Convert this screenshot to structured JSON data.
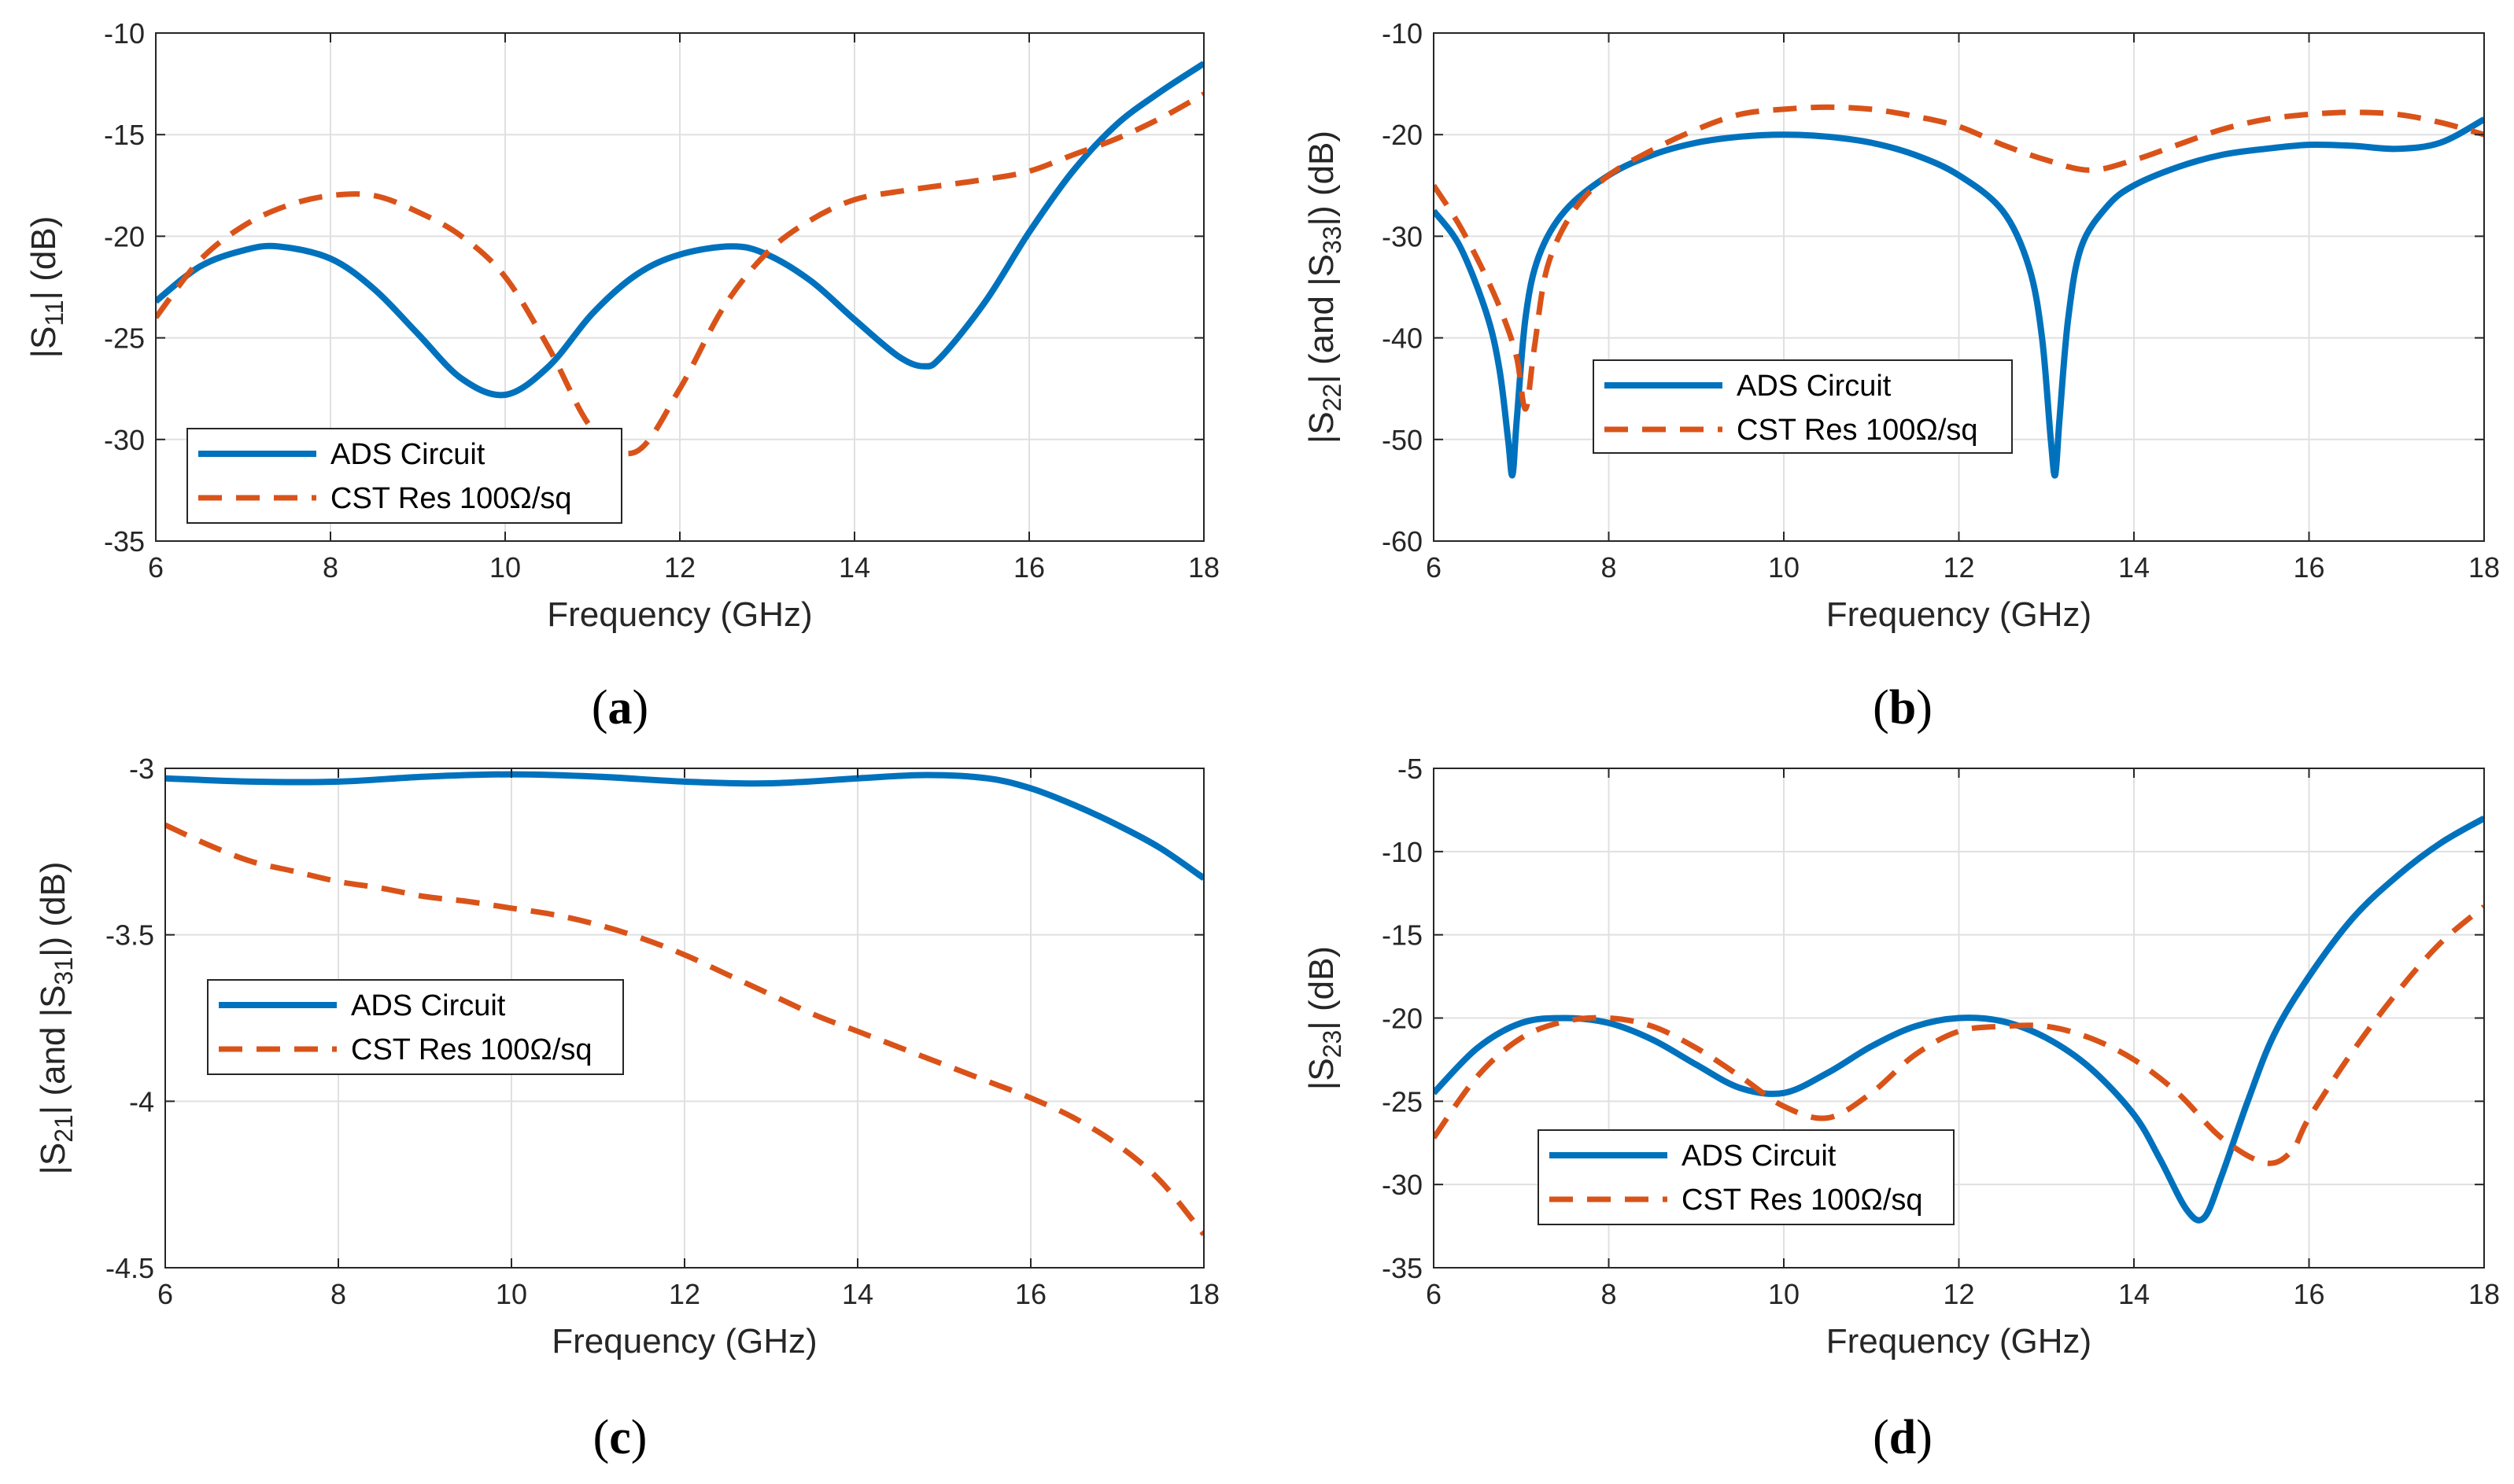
{
  "figure": {
    "colors": {
      "ads": "#0072BD",
      "cst": "#D95319",
      "axis": "#262626",
      "grid": "#E0E0E0"
    }
  },
  "chart_data": [
    {
      "id": "a",
      "type": "line",
      "panel_label": "a",
      "xlabel": "Frequency (GHz)",
      "ylabel_parts": [
        [
          "|S",
          ""
        ],
        [
          "11",
          "sub"
        ],
        [
          "| (dB)",
          ""
        ]
      ],
      "xlim": [
        6,
        18
      ],
      "ylim": [
        -35,
        -10
      ],
      "xticks": [
        6,
        8,
        10,
        12,
        14,
        16,
        18
      ],
      "yticks": [
        -35,
        -30,
        -25,
        -20,
        -15,
        -10
      ],
      "grid": true,
      "legend_position": "bottom-left",
      "series": [
        {
          "name": "ADS Circuit",
          "style": "solid",
          "x": [
            6,
            6.5,
            7,
            7.4,
            8,
            8.5,
            9,
            9.5,
            10,
            10.5,
            11,
            11.5,
            12,
            12.6,
            13,
            13.5,
            14,
            14.5,
            14.8,
            15,
            15.5,
            16,
            16.5,
            17,
            17.5,
            18
          ],
          "y": [
            -23.2,
            -21.5,
            -20.7,
            -20.5,
            -21.1,
            -22.6,
            -24.8,
            -27,
            -27.8,
            -26.4,
            -23.8,
            -21.9,
            -20.9,
            -20.5,
            -20.9,
            -22.2,
            -24.1,
            -25.9,
            -26.4,
            -25.9,
            -23.2,
            -19.8,
            -16.8,
            -14.5,
            -12.9,
            -11.5
          ]
        },
        {
          "name": "CST Res 100Ω/sq",
          "style": "dashed",
          "x": [
            6,
            6.5,
            7,
            7.5,
            8,
            8.5,
            9,
            9.5,
            10,
            10.5,
            11,
            11.5,
            12,
            12.5,
            13,
            13.5,
            14,
            14.5,
            15,
            15.5,
            16,
            16.5,
            17,
            17.5,
            18
          ],
          "y": [
            -24,
            -21.2,
            -19.5,
            -18.5,
            -18,
            -18,
            -18.8,
            -20,
            -22,
            -25.5,
            -29.5,
            -30.6,
            -27.5,
            -23.5,
            -20.8,
            -19.2,
            -18.2,
            -17.8,
            -17.5,
            -17.2,
            -16.8,
            -16,
            -15.2,
            -14.2,
            -13
          ]
        }
      ]
    },
    {
      "id": "b",
      "type": "line",
      "panel_label": "b",
      "xlabel": "Frequency (GHz)",
      "ylabel_parts": [
        [
          "|S",
          ""
        ],
        [
          "22",
          "sub"
        ],
        [
          "| (and |S",
          ""
        ],
        [
          "33",
          "sub"
        ],
        [
          "|) (dB)",
          ""
        ]
      ],
      "xlim": [
        6,
        18
      ],
      "ylim": [
        -60,
        -10
      ],
      "xticks": [
        6,
        8,
        10,
        12,
        14,
        16,
        18
      ],
      "yticks": [
        -60,
        -50,
        -40,
        -30,
        -20,
        -10
      ],
      "grid": true,
      "legend_position": "center-left",
      "series": [
        {
          "name": "ADS Circuit",
          "style": "solid",
          "x": [
            6,
            6.3,
            6.6,
            6.75,
            6.85,
            6.9,
            6.95,
            7.05,
            7.2,
            7.5,
            8,
            8.5,
            9,
            9.5,
            10,
            10.5,
            11,
            11.5,
            12,
            12.5,
            12.8,
            12.95,
            13.05,
            13.1,
            13.15,
            13.25,
            13.4,
            13.7,
            14,
            14.5,
            15,
            15.5,
            16,
            16.5,
            17,
            17.5,
            18
          ],
          "y": [
            -27.5,
            -31,
            -37.5,
            -43,
            -50,
            -53.5,
            -48,
            -38,
            -32,
            -27.5,
            -24,
            -22,
            -20.8,
            -20.2,
            -20,
            -20.2,
            -20.8,
            -22,
            -24,
            -27.5,
            -33,
            -40,
            -50,
            -53.5,
            -48,
            -38,
            -31,
            -27,
            -25,
            -23.2,
            -22,
            -21.4,
            -21,
            -21.1,
            -21.4,
            -20.8,
            -18.5
          ]
        },
        {
          "name": "CST Res 100Ω/sq",
          "style": "dashed",
          "x": [
            6,
            6.3,
            6.6,
            6.8,
            6.95,
            7.05,
            7.15,
            7.3,
            7.6,
            8,
            8.5,
            9,
            9.5,
            10,
            10.5,
            11,
            11.5,
            12,
            12.5,
            13,
            13.5,
            14,
            14.5,
            15,
            15.5,
            16,
            16.5,
            17,
            17.5,
            18
          ],
          "y": [
            -25,
            -29,
            -34,
            -38,
            -42,
            -47,
            -41,
            -33,
            -27.5,
            -24,
            -21.5,
            -19.5,
            -18,
            -17.5,
            -17.3,
            -17.5,
            -18.2,
            -19.2,
            -21,
            -22.5,
            -23.5,
            -22.5,
            -21,
            -19.5,
            -18.5,
            -18,
            -17.8,
            -18,
            -18.8,
            -20
          ]
        }
      ]
    },
    {
      "id": "c",
      "type": "line",
      "panel_label": "c",
      "xlabel": "Frequency (GHz)",
      "ylabel_parts": [
        [
          "|S",
          ""
        ],
        [
          "21",
          "sub"
        ],
        [
          "| (and |S",
          ""
        ],
        [
          "31",
          "sub"
        ],
        [
          "|) (dB)",
          ""
        ]
      ],
      "xlim": [
        6,
        18
      ],
      "ylim": [
        -4.5,
        -3
      ],
      "xticks": [
        6,
        8,
        10,
        12,
        14,
        16,
        18
      ],
      "yticks": [
        -4.5,
        -4,
        -3.5,
        -3
      ],
      "grid": true,
      "legend_position": "center-left",
      "series": [
        {
          "name": "ADS Circuit",
          "style": "solid",
          "x": [
            6,
            7,
            8,
            9,
            10,
            11,
            12,
            13,
            14,
            14.8,
            15.5,
            16,
            16.5,
            17,
            17.5,
            18
          ],
          "y": [
            -3.03,
            -3.04,
            -3.04,
            -3.025,
            -3.018,
            -3.025,
            -3.04,
            -3.045,
            -3.03,
            -3.02,
            -3.03,
            -3.06,
            -3.11,
            -3.17,
            -3.24,
            -3.33
          ]
        },
        {
          "name": "CST Res 100Ω/sq",
          "style": "dashed",
          "x": [
            6,
            6.5,
            7,
            7.5,
            8,
            8.5,
            9,
            9.5,
            10,
            10.5,
            11,
            11.5,
            12,
            12.5,
            13,
            13.5,
            14,
            14.5,
            15,
            15.5,
            16,
            16.5,
            17,
            17.5,
            18
          ],
          "y": [
            -3.17,
            -3.23,
            -3.28,
            -3.31,
            -3.34,
            -3.36,
            -3.385,
            -3.4,
            -3.42,
            -3.44,
            -3.47,
            -3.51,
            -3.56,
            -3.62,
            -3.68,
            -3.74,
            -3.79,
            -3.84,
            -3.89,
            -3.94,
            -3.99,
            -4.05,
            -4.13,
            -4.24,
            -4.4
          ]
        }
      ]
    },
    {
      "id": "d",
      "type": "line",
      "panel_label": "d",
      "xlabel": "Frequency (GHz)",
      "ylabel_parts": [
        [
          "|S",
          ""
        ],
        [
          "23",
          "sub"
        ],
        [
          "| (dB)",
          ""
        ]
      ],
      "xlim": [
        6,
        18
      ],
      "ylim": [
        -35,
        -5
      ],
      "xticks": [
        6,
        8,
        10,
        12,
        14,
        16,
        18
      ],
      "yticks": [
        -35,
        -30,
        -25,
        -20,
        -15,
        -10,
        -5
      ],
      "grid": true,
      "legend_position": "bottom-left",
      "series": [
        {
          "name": "ADS Circuit",
          "style": "solid",
          "x": [
            6,
            6.5,
            7,
            7.5,
            8,
            8.5,
            9,
            9.5,
            10,
            10.5,
            11,
            11.5,
            12,
            12.5,
            13,
            13.5,
            14,
            14.3,
            14.6,
            14.8,
            15,
            15.3,
            15.6,
            16,
            16.5,
            17,
            17.5,
            18
          ],
          "y": [
            -24.5,
            -21.8,
            -20.3,
            -20,
            -20.3,
            -21.3,
            -22.8,
            -24.2,
            -24.5,
            -23.3,
            -21.7,
            -20.5,
            -20,
            -20.2,
            -21.2,
            -23,
            -25.8,
            -28.5,
            -31.5,
            -32,
            -29.5,
            -25,
            -21,
            -17.5,
            -14,
            -11.5,
            -9.5,
            -8
          ]
        },
        {
          "name": "CST Res 100Ω/sq",
          "style": "dashed",
          "x": [
            6,
            6.5,
            7,
            7.5,
            8,
            8.5,
            9,
            9.5,
            10,
            10.5,
            11,
            11.5,
            12,
            12.5,
            13,
            13.5,
            14,
            14.5,
            15,
            15.5,
            15.8,
            16,
            16.5,
            17,
            17.5,
            18
          ],
          "y": [
            -27.2,
            -23.5,
            -21.2,
            -20.2,
            -20,
            -20.5,
            -21.8,
            -23.5,
            -25.3,
            -26,
            -24.5,
            -22.2,
            -20.8,
            -20.5,
            -20.5,
            -21.2,
            -22.5,
            -24.5,
            -27.2,
            -28.7,
            -28,
            -26,
            -22,
            -18.5,
            -15.5,
            -13.3
          ]
        }
      ]
    }
  ]
}
